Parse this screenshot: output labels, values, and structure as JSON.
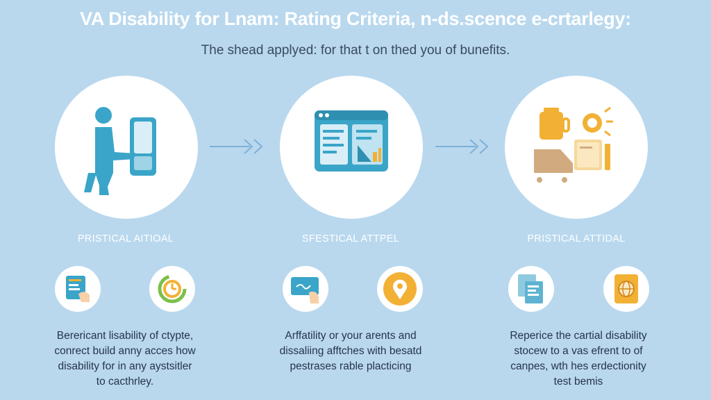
{
  "header": {
    "title": "VA Disability for Lnam: Rating Criteria, n-ds.scence e-crtarlegy:",
    "subtitle": "The shead applyed: for that t on thed you of bunefits."
  },
  "steps": [
    {
      "label": "PRISTICAL AITIOAL",
      "icon": "person-phone-icon",
      "small_icons": [
        "document-hand-icon",
        "refresh-clock-icon"
      ],
      "desc": [
        "Berericant lisability of ctypte,",
        "conrect build anny acces how",
        "disability for in any aystsitler",
        "to cacthrley."
      ]
    },
    {
      "label": "SFESTICAL ATTPEL",
      "icon": "browser-window-icon",
      "small_icons": [
        "card-hand-icon",
        "location-pin-icon"
      ],
      "desc": [
        "Arffatility or your arents and",
        "dissaliing afftches with besatd",
        "pestrases rable placticing"
      ]
    },
    {
      "label": "PRISTICAL ATTIDAL",
      "icon": "benefits-items-icon",
      "small_icons": [
        "documents-icon",
        "globe-card-icon"
      ],
      "desc": [
        "Reperice the cartial disability",
        "stocew to a vas efrent to of",
        "canpes, wth hes erdectionity",
        "test bemis"
      ]
    }
  ],
  "colors": {
    "background": "#b9d8ee",
    "teal": "#3aa5c8",
    "orange": "#f2b134",
    "arrow": "#7fb0d8"
  }
}
